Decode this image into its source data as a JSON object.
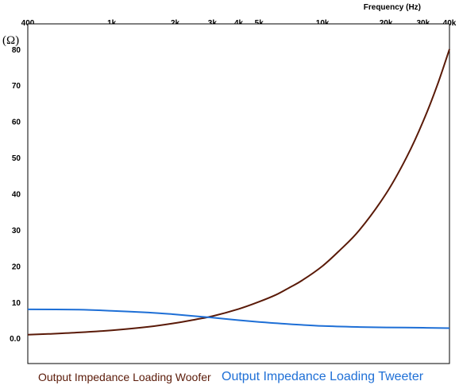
{
  "chart_data": {
    "type": "line",
    "xlabel": "Frequency  (Hz)",
    "ylabel": "(Ω)",
    "x_scale": "log",
    "xlim": [
      400,
      40000
    ],
    "ylim": [
      -7,
      87
    ],
    "grid": true,
    "x_tick_values": [
      400,
      1000,
      2000,
      3000,
      4000,
      5000,
      10000,
      20000,
      30000,
      40000
    ],
    "x_tick_labels": [
      "400",
      "1k",
      "2k",
      "3k",
      "4k",
      "5k",
      "10k",
      "20k",
      "30k",
      "40k"
    ],
    "x_minor_values": [
      600,
      700,
      800,
      900,
      6000,
      7000,
      8000,
      9000
    ],
    "y_tick_values": [
      0,
      10,
      20,
      30,
      40,
      50,
      60,
      70,
      80
    ],
    "y_tick_labels": [
      "0.0",
      "10",
      "20",
      "30",
      "40",
      "50",
      "60",
      "70",
      "80"
    ],
    "series": [
      {
        "name": "Output Impedance Loading Woofer",
        "color": "#5a1a08",
        "x": [
          400,
          500,
          700,
          1000,
          1500,
          2000,
          2500,
          3000,
          4000,
          5000,
          6000,
          7000,
          8000,
          10000,
          12000,
          15000,
          20000,
          25000,
          30000,
          35000,
          40000
        ],
        "y": [
          1,
          1.2,
          1.6,
          2.2,
          3.2,
          4.2,
          5.2,
          6.1,
          8.1,
          10.1,
          12,
          14.1,
          16,
          20,
          24.2,
          30,
          40,
          50,
          60,
          70,
          80
        ]
      },
      {
        "name": "Output Impedance Loading Tweeter",
        "color": "#1e6fd6",
        "x": [
          400,
          700,
          1000,
          1500,
          2000,
          2500,
          3000,
          4000,
          5000,
          7000,
          10000,
          15000,
          20000,
          30000,
          40000
        ],
        "y": [
          8,
          7.9,
          7.6,
          7.1,
          6.6,
          6.1,
          5.7,
          5,
          4.5,
          3.9,
          3.4,
          3.1,
          3,
          2.9,
          2.8
        ]
      }
    ]
  }
}
